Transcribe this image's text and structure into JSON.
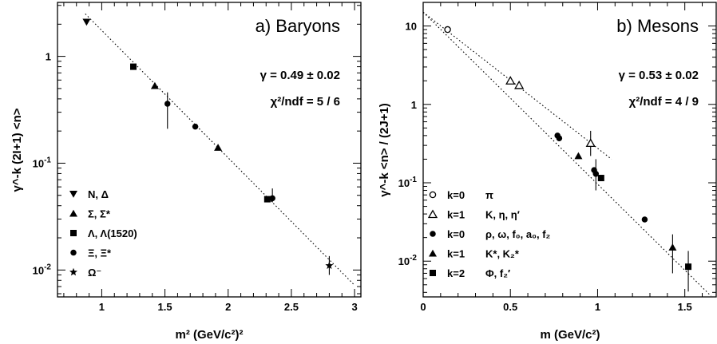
{
  "chart_data": [
    {
      "type": "scatter",
      "yscale": "log",
      "title": "a) Baryons",
      "xlabel": "m² (GeV/c²)²",
      "ylabel": "γ^-k (2I+1) <n>",
      "xlim": [
        0.65,
        3.05
      ],
      "ylim": [
        0.0056,
        3.2
      ],
      "xticks": [
        1,
        1.5,
        2,
        2.5,
        3
      ],
      "xtick_labels": [
        "1",
        "1.5",
        "2",
        "2.5",
        "3"
      ],
      "yticks": [
        1,
        0.1,
        0.01
      ],
      "ytick_labels": [
        "1",
        "10⁻¹",
        "10⁻²"
      ],
      "annotations": [
        "γ = 0.49 ± 0.02",
        "χ²/ndf = 5 / 6"
      ],
      "series": [
        {
          "name": "N, Δ",
          "marker": "triangle-down",
          "points": [
            {
              "x": 0.88,
              "y": 2.1
            }
          ]
        },
        {
          "name": "Σ, Σ*",
          "marker": "triangle-up",
          "points": [
            {
              "x": 1.42,
              "y": 0.53
            },
            {
              "x": 1.92,
              "y": 0.14
            }
          ]
        },
        {
          "name": "Λ, Λ(1520)",
          "marker": "square",
          "points": [
            {
              "x": 1.25,
              "y": 0.8
            },
            {
              "x": 2.31,
              "y": 0.046
            }
          ]
        },
        {
          "name": "Ξ, Ξ*",
          "marker": "circle",
          "points": [
            {
              "x": 1.52,
              "y": 0.36,
              "err_lo": 0.21,
              "err_hi": 0.46
            },
            {
              "x": 1.74,
              "y": 0.22
            },
            {
              "x": 2.35,
              "y": 0.047,
              "err_lo": 0.043,
              "err_hi": 0.058
            }
          ]
        },
        {
          "name": "Ω⁻",
          "marker": "star",
          "points": [
            {
              "x": 2.8,
              "y": 0.011,
              "err_lo": 0.009,
              "err_hi": 0.0135
            }
          ]
        }
      ],
      "fit_lines": [
        {
          "x": [
            0.87,
            3.0
          ],
          "y": [
            2.5,
            0.0072
          ]
        }
      ]
    },
    {
      "type": "scatter",
      "yscale": "log",
      "title": "b) Mesons",
      "xlabel": "m (GeV/c²)",
      "ylabel": "γ^-k <n> / (2J+1)",
      "xlim": [
        0,
        1.68
      ],
      "ylim": [
        0.0035,
        20
      ],
      "xticks": [
        0,
        0.5,
        1,
        1.5
      ],
      "xtick_labels": [
        "0",
        "0.5",
        "1",
        "1.5"
      ],
      "yticks": [
        10,
        1,
        0.1,
        0.01
      ],
      "ytick_labels": [
        "10",
        "1",
        "10⁻¹",
        "10⁻²"
      ],
      "annotations": [
        "γ = 0.53 ± 0.02",
        "χ²/ndf = 4 / 9"
      ],
      "series": [
        {
          "name": "k=0",
          "particles": "π",
          "marker": "circle-open",
          "points": [
            {
              "x": 0.14,
              "y": 9.0
            }
          ]
        },
        {
          "name": "k=1",
          "particles": "K, η, η′",
          "marker": "triangle-open",
          "points": [
            {
              "x": 0.5,
              "y": 2.0
            },
            {
              "x": 0.55,
              "y": 1.75
            },
            {
              "x": 0.96,
              "y": 0.32,
              "err_lo": 0.22,
              "err_hi": 0.46
            }
          ]
        },
        {
          "name": "k=0",
          "particles": "ρ, ω, f₀, a₀, f₂",
          "marker": "circle",
          "points": [
            {
              "x": 0.77,
              "y": 0.4
            },
            {
              "x": 0.78,
              "y": 0.37
            },
            {
              "x": 0.98,
              "y": 0.145
            },
            {
              "x": 0.99,
              "y": 0.13,
              "err_lo": 0.08,
              "err_hi": 0.2
            },
            {
              "x": 1.27,
              "y": 0.034
            }
          ]
        },
        {
          "name": "k=1",
          "particles": "K*, K₂*",
          "marker": "triangle-up",
          "points": [
            {
              "x": 0.89,
              "y": 0.22
            },
            {
              "x": 1.43,
              "y": 0.015,
              "err_lo": 0.007,
              "err_hi": 0.022
            }
          ]
        },
        {
          "name": "k=2",
          "particles": "Φ, f₂′",
          "marker": "square",
          "points": [
            {
              "x": 1.02,
              "y": 0.115
            },
            {
              "x": 1.52,
              "y": 0.0085,
              "err_lo": 0.0041,
              "err_hi": 0.0135
            }
          ]
        }
      ],
      "fit_lines": [
        {
          "x": [
            0,
            1.65
          ],
          "y": [
            15,
            0.0036
          ]
        },
        {
          "x": [
            0,
            1.08
          ],
          "y": [
            15,
            0.2
          ]
        }
      ]
    }
  ]
}
